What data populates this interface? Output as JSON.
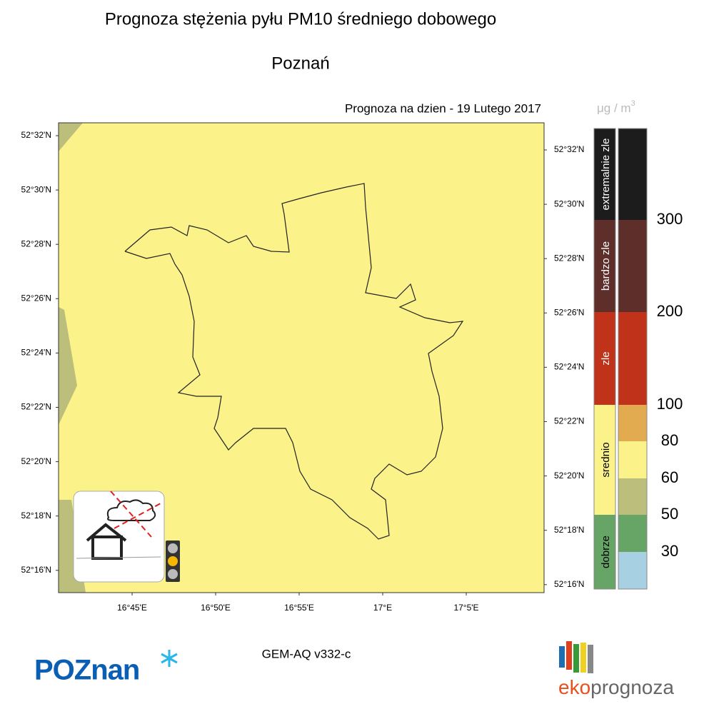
{
  "title": "Prognoza stężenia pyłu PM10 średniego dobowego",
  "city": "Poznań",
  "forecast_label": "Prognoza na dzien -  19 Lutego 2017",
  "unit": {
    "base": "μg / m",
    "sup": "3"
  },
  "lat_labels": [
    "52°32'N",
    "52°30'N",
    "52°28'N",
    "52°26'N",
    "52°24'N",
    "52°22'N",
    "52°20'N",
    "52°18'N",
    "52°16'N"
  ],
  "lon_labels": [
    "16°45'E",
    "16°50'E",
    "16°55'E",
    "17°E",
    "17°5'E"
  ],
  "legend": {
    "categories": [
      {
        "label": "extremalnie zle",
        "color": "#1c1c1c"
      },
      {
        "label": "bardzo zle",
        "color": "#5e2e2a"
      },
      {
        "label": "zle",
        "color": "#c0321a"
      },
      {
        "label": "srednio",
        "color": "#fbf28a"
      },
      {
        "label": "dobrze",
        "color": "#67a566"
      }
    ],
    "levels": [
      300,
      200,
      100,
      80,
      60,
      50,
      30
    ],
    "colors": [
      "#1c1c1c",
      "#5e2e2a",
      "#c0321a",
      "#e2ab4f",
      "#fbf28a",
      "#bcbf7b",
      "#67a566",
      "#a7d1e2"
    ]
  },
  "model": "GEM-AQ v332-c",
  "logos": {
    "poznan": "POZnan",
    "eko": "eko",
    "prognoza": "prognoza"
  }
}
